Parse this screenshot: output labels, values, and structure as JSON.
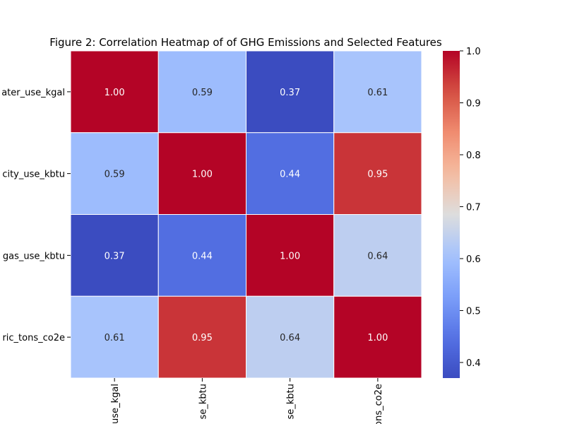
{
  "chart_data": {
    "type": "heatmap",
    "title": "Figure 2: Correlation Heatmap of of GHG Emissions and Selected Features",
    "row_labels": [
      "ater_use_kgal",
      "city_use_kbtu",
      "gas_use_kbtu",
      "ric_tons_co2e"
    ],
    "col_labels": [
      "use_kgal",
      "se_kbtu",
      "se_kbtu",
      "ons_co2e"
    ],
    "values": [
      [
        1.0,
        0.59,
        0.37,
        0.61
      ],
      [
        0.59,
        1.0,
        0.44,
        0.95
      ],
      [
        0.37,
        0.44,
        1.0,
        0.64
      ],
      [
        0.61,
        0.95,
        0.64,
        1.0
      ]
    ],
    "cell_text": [
      [
        "1.00",
        "0.59",
        "0.37",
        "0.61"
      ],
      [
        "0.59",
        "1.00",
        "0.44",
        "0.95"
      ],
      [
        "0.37",
        "0.44",
        "1.00",
        "0.64"
      ],
      [
        "0.61",
        "0.95",
        "0.64",
        "1.00"
      ]
    ],
    "colormap": "coolwarm",
    "vmin": 0.37,
    "vmax": 1.0,
    "colorbar_ticks": [
      "0.4",
      "0.5",
      "0.6",
      "0.7",
      "0.8",
      "0.9",
      "1.0"
    ],
    "colorbar_tick_values": [
      0.4,
      0.5,
      0.6,
      0.7,
      0.8,
      0.9,
      1.0
    ],
    "gridlines": "white cell borders"
  }
}
